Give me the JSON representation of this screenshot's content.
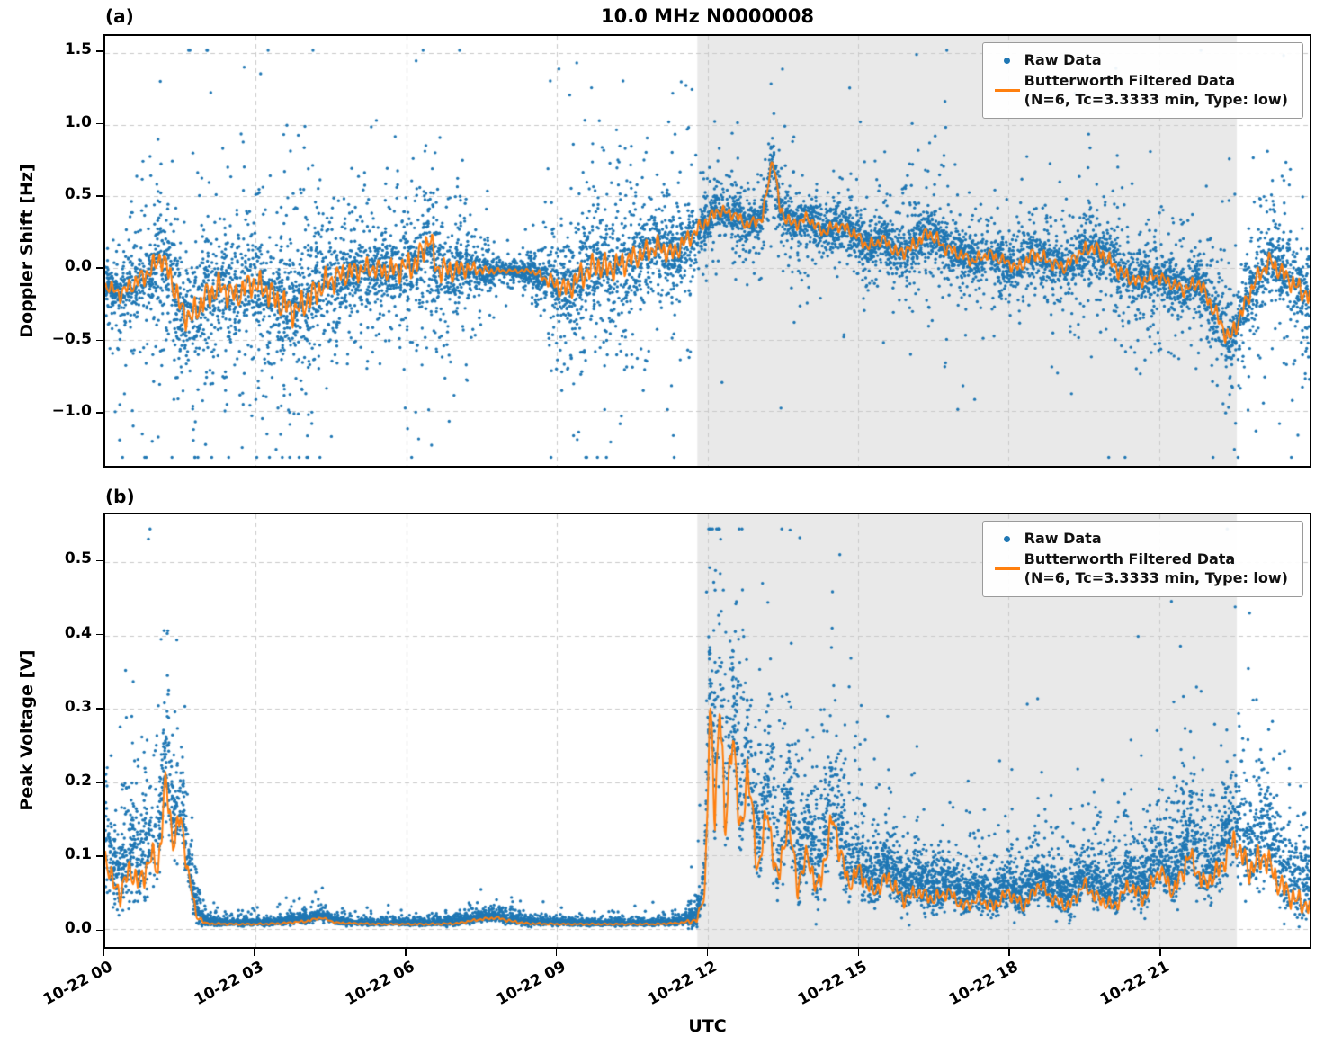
{
  "figure": {
    "title": "10.0 MHz N0000008",
    "xlabel": "UTC",
    "colors": {
      "raw": "#1f77b4",
      "filtered": "#ff7f0e",
      "shade": "#e9e9e9",
      "grid": "#c9c9c9",
      "spine": "#000000"
    },
    "legend": {
      "raw_label": "Raw Data",
      "filtered_label": "Butterworth Filtered Data",
      "filtered_sublabel": "(N=6, Tc=3.3333 min, Type: low)"
    }
  },
  "chart_data": [
    {
      "type": "scatter",
      "panel_label": "(a)",
      "title": "10.0 MHz N0000008",
      "ylabel": "Doppler Shift [Hz]",
      "xlim": [
        0,
        24
      ],
      "ylim": [
        -1.38,
        1.62
      ],
      "clamp": [
        -1.32,
        1.52
      ],
      "yticks": [
        -1.0,
        -0.5,
        0.0,
        0.5,
        1.0,
        1.5
      ],
      "xticks": [
        {
          "hour": 0,
          "label": "10-22 00"
        },
        {
          "hour": 3,
          "label": "10-22 03"
        },
        {
          "hour": 6,
          "label": "10-22 06"
        },
        {
          "hour": 9,
          "label": "10-22 09"
        },
        {
          "hour": 12,
          "label": "10-22 12"
        },
        {
          "hour": 15,
          "label": "10-22 15"
        },
        {
          "hour": 18,
          "label": "10-22 18"
        },
        {
          "hour": 21,
          "label": "10-22 21"
        }
      ],
      "shaded_region_hours": [
        11.8,
        22.55
      ],
      "series": [
        {
          "name": "Raw Data",
          "type": "scatter",
          "color": "#1f77b4"
        },
        {
          "name": "Butterworth Filtered Data (N=6, Tc=3.3333 min, Type: low)",
          "type": "line",
          "color": "#ff7f0e",
          "x": [
            0,
            0.3,
            0.6,
            0.9,
            1.1,
            1.3,
            1.5,
            1.7,
            2.0,
            2.3,
            2.6,
            2.9,
            3.2,
            3.5,
            3.8,
            4.1,
            4.4,
            4.7,
            5.0,
            5.3,
            5.6,
            5.9,
            6.2,
            6.45,
            6.6,
            6.9,
            7.2,
            7.6,
            8.0,
            8.5,
            9.0,
            9.2,
            9.5,
            9.8,
            10.1,
            10.4,
            10.7,
            11.0,
            11.3,
            11.6,
            11.9,
            12.2,
            12.5,
            12.8,
            13.1,
            13.3,
            13.45,
            13.7,
            14.0,
            14.3,
            14.6,
            14.9,
            15.2,
            15.5,
            15.8,
            16.1,
            16.4,
            16.7,
            17.0,
            17.3,
            17.6,
            17.9,
            18.2,
            18.5,
            18.8,
            19.1,
            19.4,
            19.7,
            20.0,
            20.3,
            20.6,
            20.9,
            21.2,
            21.5,
            21.8,
            22.1,
            22.4,
            22.6,
            22.9,
            23.2,
            23.5,
            23.8,
            24.0
          ],
          "y": [
            -0.12,
            -0.18,
            -0.1,
            -0.02,
            0.08,
            -0.05,
            -0.28,
            -0.35,
            -0.2,
            -0.13,
            -0.2,
            -0.1,
            -0.15,
            -0.25,
            -0.3,
            -0.2,
            -0.1,
            -0.05,
            -0.02,
            0,
            -0.02,
            0,
            0.03,
            0.22,
            0,
            -0.02,
            0,
            -0.02,
            -0.02,
            -0.02,
            -0.12,
            -0.15,
            -0.05,
            0.02,
            0,
            0.05,
            0.1,
            0.15,
            0.1,
            0.2,
            0.3,
            0.4,
            0.38,
            0.3,
            0.35,
            0.78,
            0.4,
            0.3,
            0.35,
            0.25,
            0.3,
            0.25,
            0.15,
            0.2,
            0.1,
            0.15,
            0.25,
            0.15,
            0.1,
            0.05,
            0.1,
            0.05,
            0,
            0.1,
            0.05,
            0,
            0.1,
            0.15,
            0.05,
            -0.05,
            -0.1,
            -0.05,
            -0.1,
            -0.15,
            -0.1,
            -0.3,
            -0.5,
            -0.35,
            -0.1,
            0.05,
            -0.05,
            -0.15,
            -0.2
          ]
        }
      ],
      "scatter_envelope": {
        "seed": 42,
        "n_points": 9000,
        "positive_skew": false,
        "outlier_profile": [
          [
            0.55,
            0.5
          ],
          [
            0.85,
            1.2
          ],
          [
            0.975,
            2.5
          ],
          [
            1,
            4.5
          ]
        ],
        "x": [
          0,
          0.5,
          1,
          1.5,
          2,
          2.5,
          3,
          3.5,
          4,
          4.5,
          5,
          5.5,
          6,
          6.5,
          7,
          7.5,
          8,
          8.5,
          9,
          9.5,
          10,
          10.5,
          11,
          11.5,
          12,
          12.5,
          13,
          13.5,
          14,
          14.5,
          15,
          15.5,
          16,
          16.5,
          17,
          17.5,
          18,
          18.5,
          19,
          19.5,
          20,
          20.5,
          21,
          21.5,
          22,
          22.5,
          23,
          23.5,
          24
        ],
        "spread": [
          0.12,
          0.18,
          0.22,
          0.28,
          0.3,
          0.28,
          0.28,
          0.3,
          0.3,
          0.28,
          0.22,
          0.2,
          0.28,
          0.3,
          0.22,
          0.1,
          0.04,
          0.05,
          0.2,
          0.28,
          0.28,
          0.25,
          0.22,
          0.2,
          0.13,
          0.12,
          0.12,
          0.14,
          0.12,
          0.12,
          0.13,
          0.12,
          0.15,
          0.15,
          0.13,
          0.12,
          0.13,
          0.15,
          0.13,
          0.15,
          0.17,
          0.15,
          0.13,
          0.14,
          0.17,
          0.2,
          0.18,
          0.2,
          0.22
        ]
      }
    },
    {
      "type": "scatter",
      "panel_label": "(b)",
      "ylabel": "Peak Voltage [V]",
      "xlim": [
        0,
        24
      ],
      "ylim": [
        -0.025,
        0.565
      ],
      "clamp": [
        0.0,
        0.545
      ],
      "yticks": [
        0.0,
        0.1,
        0.2,
        0.3,
        0.4,
        0.5
      ],
      "xticks": [
        {
          "hour": 0,
          "label": "10-22 00"
        },
        {
          "hour": 3,
          "label": "10-22 03"
        },
        {
          "hour": 6,
          "label": "10-22 06"
        },
        {
          "hour": 9,
          "label": "10-22 09"
        },
        {
          "hour": 12,
          "label": "10-22 12"
        },
        {
          "hour": 15,
          "label": "10-22 15"
        },
        {
          "hour": 18,
          "label": "10-22 18"
        },
        {
          "hour": 21,
          "label": "10-22 21"
        }
      ],
      "shaded_region_hours": [
        11.8,
        22.55
      ],
      "series": [
        {
          "name": "Raw Data",
          "type": "scatter",
          "color": "#1f77b4"
        },
        {
          "name": "Butterworth Filtered Data (N=6, Tc=3.3333 min, Type: low)",
          "type": "line",
          "color": "#ff7f0e",
          "x": [
            0,
            0.15,
            0.3,
            0.5,
            0.7,
            0.9,
            1.05,
            1.2,
            1.35,
            1.5,
            1.65,
            1.8,
            2.0,
            2.5,
            3.0,
            3.5,
            4.0,
            4.3,
            4.6,
            5.0,
            5.5,
            6.0,
            6.5,
            7.0,
            7.4,
            7.8,
            8.1,
            8.4,
            9.0,
            9.5,
            10.0,
            10.5,
            11.0,
            11.5,
            11.8,
            11.95,
            12.05,
            12.15,
            12.25,
            12.35,
            12.5,
            12.65,
            12.8,
            13.0,
            13.2,
            13.4,
            13.6,
            13.8,
            14.0,
            14.2,
            14.5,
            14.8,
            15.0,
            15.3,
            15.6,
            15.9,
            16.2,
            16.5,
            16.8,
            17.1,
            17.4,
            17.7,
            18.0,
            18.3,
            18.6,
            18.9,
            19.2,
            19.5,
            19.8,
            20.1,
            20.4,
            20.7,
            21.0,
            21.3,
            21.6,
            21.9,
            22.2,
            22.5,
            22.8,
            23.1,
            23.4,
            23.7,
            24.0
          ],
          "y": [
            0.1,
            0.06,
            0.05,
            0.08,
            0.06,
            0.1,
            0.08,
            0.2,
            0.12,
            0.15,
            0.08,
            0.02,
            0.007,
            0.006,
            0.006,
            0.007,
            0.01,
            0.015,
            0.008,
            0.007,
            0.006,
            0.006,
            0.006,
            0.007,
            0.012,
            0.015,
            0.01,
            0.007,
            0.006,
            0.006,
            0.006,
            0.006,
            0.006,
            0.008,
            0.012,
            0.05,
            0.3,
            0.15,
            0.33,
            0.12,
            0.28,
            0.12,
            0.22,
            0.08,
            0.16,
            0.06,
            0.15,
            0.06,
            0.1,
            0.05,
            0.15,
            0.06,
            0.08,
            0.05,
            0.07,
            0.04,
            0.05,
            0.04,
            0.05,
            0.03,
            0.04,
            0.03,
            0.05,
            0.03,
            0.06,
            0.04,
            0.03,
            0.06,
            0.04,
            0.03,
            0.06,
            0.04,
            0.08,
            0.05,
            0.1,
            0.06,
            0.08,
            0.12,
            0.08,
            0.1,
            0.06,
            0.04,
            0.03
          ]
        }
      ],
      "scatter_envelope": {
        "seed": 1337,
        "n_points": 9000,
        "positive_skew": true,
        "outlier_profile": [
          [
            0.6,
            0.6
          ],
          [
            0.9,
            1.4
          ],
          [
            0.98,
            2.6
          ],
          [
            1,
            4.5
          ]
        ],
        "x": [
          0,
          0.5,
          1,
          1.5,
          2,
          3,
          4,
          5,
          6,
          7,
          7.5,
          8,
          8.5,
          9,
          10,
          11,
          11.5,
          11.9,
          12.1,
          12.4,
          12.7,
          13,
          13.5,
          14,
          14.5,
          15,
          15.5,
          16,
          17,
          18,
          19,
          20,
          21,
          21.5,
          22,
          22.5,
          23,
          23.5,
          24
        ],
        "spread": [
          0.045,
          0.05,
          0.06,
          0.05,
          0.004,
          0.003,
          0.005,
          0.003,
          0.003,
          0.004,
          0.005,
          0.006,
          0.004,
          0.003,
          0.003,
          0.003,
          0.004,
          0.02,
          0.1,
          0.09,
          0.08,
          0.06,
          0.06,
          0.05,
          0.06,
          0.04,
          0.035,
          0.03,
          0.025,
          0.025,
          0.025,
          0.03,
          0.035,
          0.045,
          0.04,
          0.05,
          0.06,
          0.05,
          0.04
        ]
      }
    }
  ]
}
